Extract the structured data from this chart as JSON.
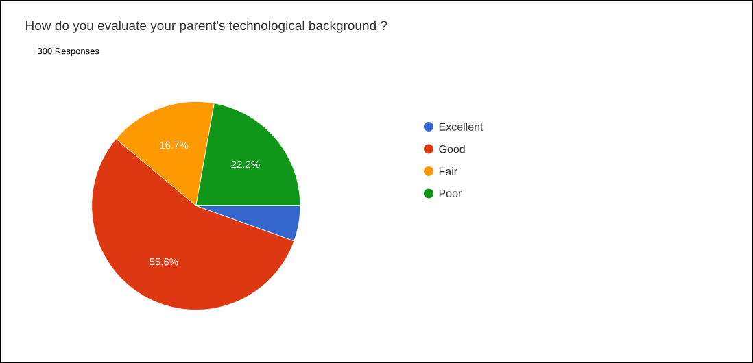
{
  "chart_data": {
    "type": "pie",
    "title": "How do you evaluate your parent's technological background ?",
    "subtitle": "300 Responses",
    "categories": [
      "Excellent",
      "Good",
      "Fair",
      "Poor"
    ],
    "values": [
      5.5,
      55.6,
      16.7,
      22.2
    ],
    "colors": [
      "#3366cc",
      "#dc3912",
      "#ff9900",
      "#109618"
    ],
    "value_labels": [
      null,
      "55.6%",
      "16.7%",
      "22.2%"
    ],
    "legend": "right"
  }
}
